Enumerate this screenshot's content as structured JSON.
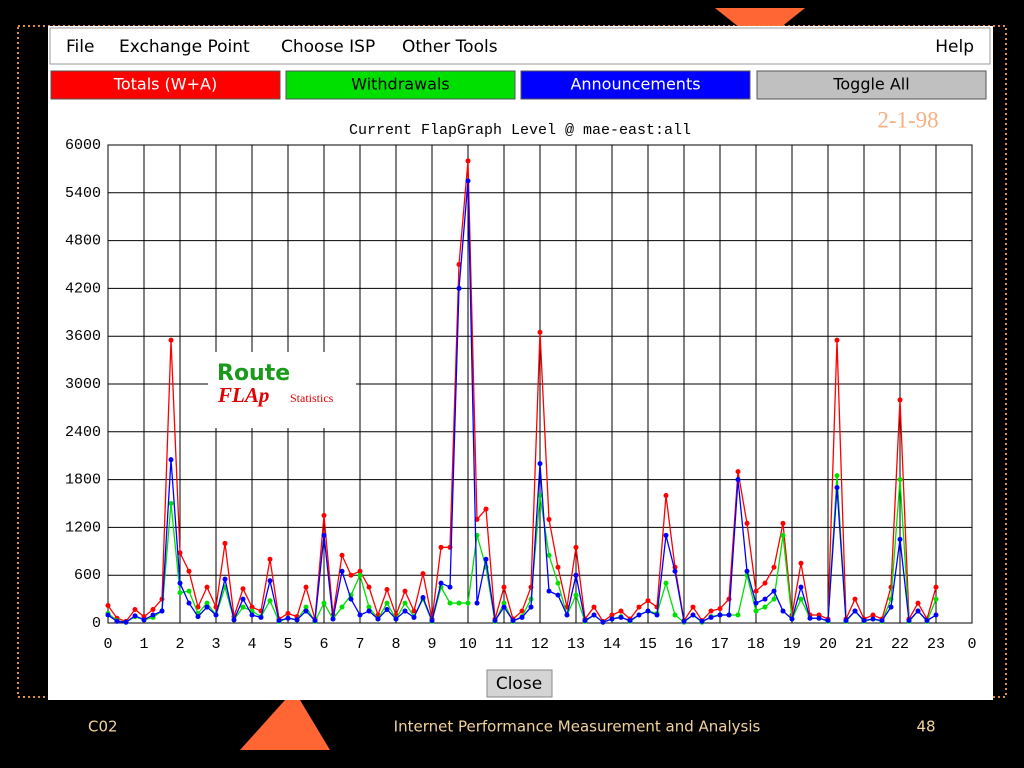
{
  "menu": [
    "File",
    "Exchange Point",
    "Choose ISP",
    "Other Tools",
    "Help"
  ],
  "toolbar": [
    "Totals (W+A)",
    "Withdrawals",
    "Announcements",
    "Toggle All"
  ],
  "logo": {
    "line1": "Route",
    "line2": "FLAp",
    "line3": "Statistics"
  },
  "close_button": "Close",
  "slide": {
    "date": "2-1-98",
    "footer_left": "C02",
    "footer_center": "Internet Performance Measurement and Analysis",
    "page_number": "48"
  },
  "chart_data": {
    "type": "line",
    "title": "Current FlapGraph Level @ mae-east:all",
    "x": [
      0,
      0.25,
      0.5,
      0.75,
      1,
      1.25,
      1.5,
      1.75,
      2,
      2.25,
      2.5,
      2.75,
      3,
      3.25,
      3.5,
      3.75,
      4,
      4.25,
      4.5,
      4.75,
      5,
      5.25,
      5.5,
      5.75,
      6,
      6.25,
      6.5,
      6.75,
      7,
      7.25,
      7.5,
      7.75,
      8,
      8.25,
      8.5,
      8.75,
      9,
      9.25,
      9.5,
      9.75,
      10,
      10.25,
      10.5,
      10.75,
      11,
      11.25,
      11.5,
      11.75,
      12,
      12.25,
      12.5,
      12.75,
      13,
      13.25,
      13.5,
      13.75,
      14,
      14.25,
      14.5,
      14.75,
      15,
      15.25,
      15.5,
      15.75,
      16,
      16.25,
      16.5,
      16.75,
      17,
      17.25,
      17.5,
      17.75,
      18,
      18.25,
      18.5,
      18.75,
      19,
      19.25,
      19.5,
      19.75,
      20,
      20.25,
      20.5,
      20.75,
      21,
      21.25,
      21.5,
      21.75,
      22,
      22.25,
      22.5,
      22.75,
      23
    ],
    "series": [
      {
        "name": "Totals (W+A)",
        "color": "#ff0000",
        "values": [
          220,
          60,
          20,
          170,
          80,
          170,
          300,
          3550,
          880,
          650,
          200,
          450,
          200,
          1000,
          80,
          430,
          200,
          150,
          800,
          50,
          120,
          80,
          450,
          50,
          1350,
          100,
          850,
          600,
          650,
          450,
          100,
          420,
          100,
          400,
          150,
          620,
          50,
          950,
          950,
          4500,
          5800,
          1300,
          1430,
          50,
          450,
          50,
          150,
          450,
          3650,
          1300,
          700,
          200,
          950,
          50,
          200,
          20,
          100,
          150,
          50,
          200,
          280,
          200,
          1600,
          700,
          30,
          200,
          30,
          150,
          180,
          300,
          1900,
          1250,
          400,
          500,
          700,
          1250,
          100,
          750,
          100,
          100,
          50,
          3550,
          50,
          300,
          50,
          100,
          50,
          450,
          2800,
          50,
          250,
          50,
          450
        ]
      },
      {
        "name": "Withdrawals",
        "color": "#00e000",
        "values": [
          120,
          30,
          10,
          80,
          40,
          70,
          150,
          1500,
          380,
          400,
          120,
          250,
          100,
          450,
          40,
          200,
          150,
          80,
          280,
          20,
          60,
          40,
          200,
          20,
          250,
          50,
          200,
          350,
          600,
          200,
          50,
          250,
          50,
          250,
          80,
          300,
          20,
          450,
          250,
          250,
          250,
          1100,
          700,
          20,
          250,
          20,
          80,
          300,
          1600,
          850,
          500,
          100,
          350,
          20,
          100,
          10,
          50,
          80,
          20,
          100,
          150,
          120,
          500,
          100,
          10,
          100,
          10,
          80,
          100,
          100,
          100,
          600,
          150,
          200,
          300,
          1100,
          50,
          300,
          60,
          60,
          20,
          1850,
          20,
          150,
          20,
          50,
          20,
          300,
          1800,
          20,
          150,
          20,
          300
        ]
      },
      {
        "name": "Announcements",
        "color": "#0000ff",
        "values": [
          100,
          20,
          10,
          90,
          40,
          100,
          150,
          2050,
          500,
          250,
          80,
          200,
          100,
          550,
          40,
          300,
          100,
          70,
          530,
          30,
          60,
          40,
          150,
          30,
          1100,
          50,
          650,
          300,
          100,
          150,
          50,
          170,
          50,
          150,
          70,
          320,
          30,
          500,
          450,
          4200,
          5550,
          250,
          800,
          30,
          200,
          30,
          70,
          200,
          2000,
          400,
          350,
          100,
          600,
          30,
          100,
          10,
          50,
          70,
          30,
          100,
          150,
          100,
          1100,
          650,
          20,
          100,
          20,
          70,
          100,
          100,
          1800,
          650,
          250,
          300,
          400,
          150,
          50,
          450,
          60,
          60,
          30,
          1700,
          30,
          150,
          30,
          50,
          30,
          200,
          1050,
          30,
          150,
          30,
          100
        ]
      }
    ],
    "xlim": [
      0,
      24
    ],
    "xticks": [
      0,
      1,
      2,
      3,
      4,
      5,
      6,
      7,
      8,
      9,
      10,
      11,
      12,
      13,
      14,
      15,
      16,
      17,
      18,
      19,
      20,
      21,
      22,
      23,
      {
        "value": 24,
        "label": "0"
      }
    ],
    "ylim": [
      0,
      6000
    ],
    "yticks": [
      0,
      600,
      1200,
      1800,
      2400,
      3000,
      3600,
      4200,
      4800,
      5400,
      6000
    ],
    "grid": true
  }
}
